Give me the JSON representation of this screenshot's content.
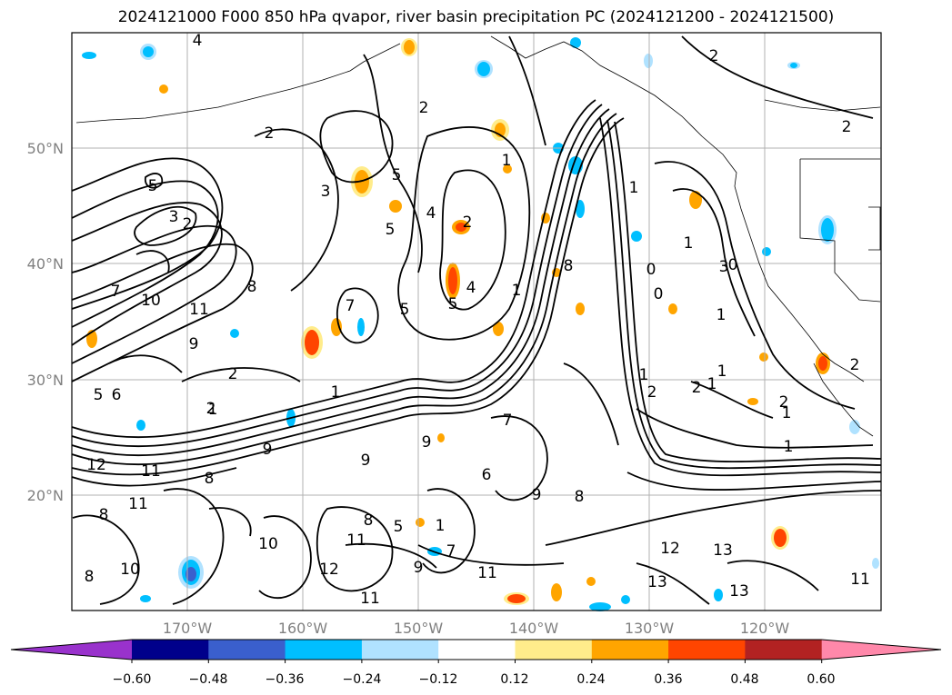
{
  "title": "2024121000 F000 850 hPa qvapor, river basin precipitation PC (2024121200 - 2024121500)",
  "lat_labels": [
    "50°N",
    "40°N",
    "30°N",
    "20°N"
  ],
  "lon_labels": [
    "170°W",
    "160°W",
    "150°W",
    "140°W",
    "130°W",
    "120°W"
  ],
  "colorbar": {
    "colors": [
      "#9932cc",
      "#00008b",
      "#3a5fcd",
      "#00bfff",
      "#b0e2ff",
      "#ffffff",
      "#ffec8b",
      "#ffa500",
      "#ff4500",
      "#b22222",
      "#ff88aa"
    ],
    "tick_labels": [
      "−0.60",
      "−0.48",
      "−0.36",
      "−0.24",
      "−0.12",
      "0.12",
      "0.24",
      "0.36",
      "0.48",
      "0.60"
    ]
  },
  "contour_labels": [
    "4",
    "2",
    "2",
    "2",
    "2",
    "5",
    "3",
    "2",
    "3",
    "5",
    "4",
    "5",
    "4",
    "5",
    "1",
    "2",
    "1",
    "7",
    "10",
    "11",
    "9",
    "7",
    "8",
    "5",
    "1",
    "0",
    "0",
    "0",
    "1",
    "8",
    "2",
    "1",
    "6",
    "5",
    "2",
    "12",
    "11",
    "9",
    "9",
    "11",
    "8",
    "8",
    "8",
    "9",
    "9",
    "8",
    "7",
    "6",
    "10",
    "11",
    "12",
    "13",
    "13",
    "11",
    "13",
    "10",
    "11",
    "12",
    "8",
    "11",
    "9",
    "7",
    "5",
    "1",
    "1",
    "1",
    "2",
    "2",
    "2",
    "3",
    "1",
    "1",
    "2",
    "1",
    "1",
    "1"
  ]
}
